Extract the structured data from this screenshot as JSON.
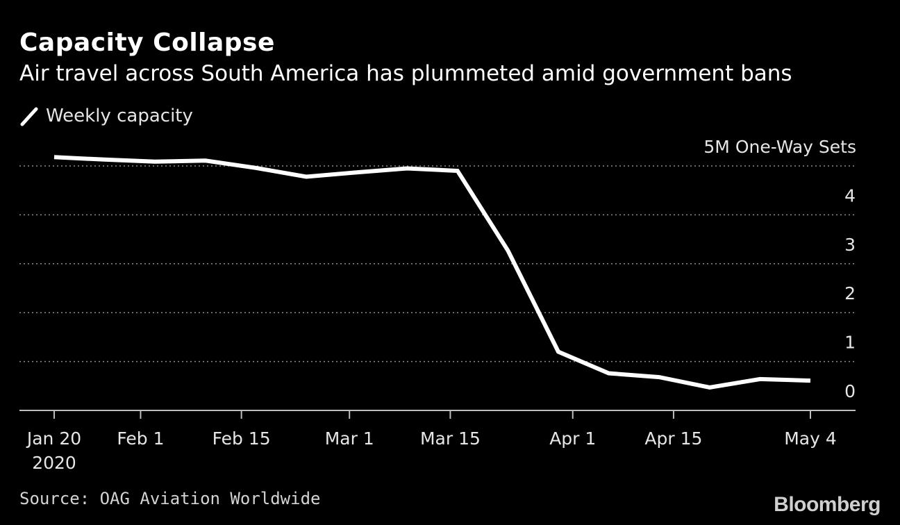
{
  "title": "Capacity Collapse",
  "subtitle": "Air travel across South America has plummeted amid government bans",
  "legend": {
    "icon": "line-swatch-icon",
    "label": "Weekly capacity"
  },
  "source": "Source: OAG Aviation Worldwide",
  "brand": "Bloomberg",
  "colors": {
    "background": "#000000",
    "line": "#ffffff",
    "grid": "#8c8c8c",
    "text": "#e6e6e6"
  },
  "chart_data": {
    "type": "line",
    "title": "Capacity Collapse",
    "subtitle": "Air travel across South America has plummeted amid government bans",
    "y_unit_label": "5M One-Way Sets",
    "ylim": [
      0,
      5
    ],
    "y_ticks": [
      0,
      1,
      2,
      3,
      4,
      5
    ],
    "y_tick_labels": [
      "0",
      "1",
      "2",
      "3",
      "4",
      ""
    ],
    "y_axis_side": "right",
    "grid": "horizontal-dotted",
    "x_ticks": [
      {
        "date": "2020-01-20",
        "label": "Jan 20",
        "sublabel": "2020"
      },
      {
        "date": "2020-02-01",
        "label": "Feb 1"
      },
      {
        "date": "2020-02-15",
        "label": "Feb 15"
      },
      {
        "date": "2020-03-01",
        "label": "Mar 1"
      },
      {
        "date": "2020-03-15",
        "label": "Mar 15"
      },
      {
        "date": "2020-04-01",
        "label": "Apr 1"
      },
      {
        "date": "2020-04-15",
        "label": "Apr 15"
      },
      {
        "date": "2020-05-04",
        "label": "May 4"
      }
    ],
    "legend_position": "top-left",
    "series": [
      {
        "name": "Weekly capacity",
        "x": [
          "2020-01-20",
          "2020-01-27",
          "2020-02-03",
          "2020-02-10",
          "2020-02-17",
          "2020-02-24",
          "2020-03-02",
          "2020-03-09",
          "2020-03-16",
          "2020-03-23",
          "2020-03-30",
          "2020-04-06",
          "2020-04-13",
          "2020-04-20",
          "2020-04-27",
          "2020-05-04"
        ],
        "y": [
          5.18,
          5.13,
          5.09,
          5.11,
          4.96,
          4.78,
          4.87,
          4.95,
          4.9,
          3.27,
          1.2,
          0.76,
          0.68,
          0.47,
          0.64,
          0.61
        ]
      }
    ]
  }
}
